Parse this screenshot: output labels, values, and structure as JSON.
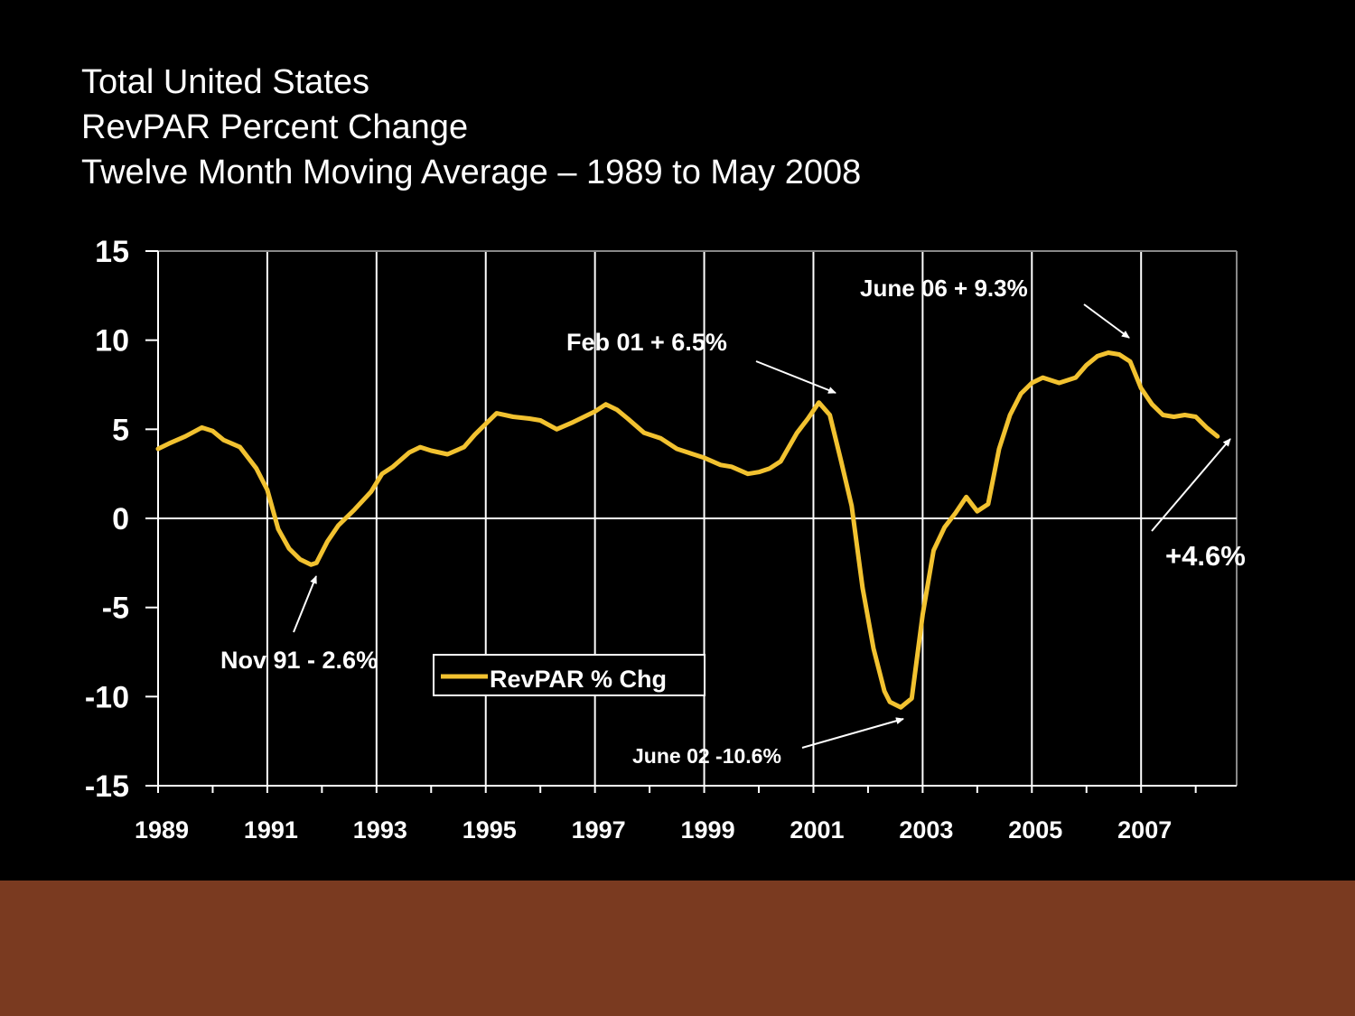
{
  "slide": {
    "title_lines": [
      "Total United States",
      "RevPAR Percent Change",
      "Twelve Month Moving Average – 1989 to May 2008"
    ],
    "footer_color": "#7a3a20",
    "background_color": "#000000"
  },
  "chart_data": {
    "type": "line",
    "title": "",
    "xlabel": "",
    "ylabel": "",
    "xlim": [
      1989,
      2008.75
    ],
    "ylim": [
      -15,
      15
    ],
    "y_ticks": [
      15,
      10,
      5,
      0,
      -5,
      -10,
      -15
    ],
    "y_tick_labels": [
      "15",
      "10",
      "5",
      "0",
      "-5",
      "-10",
      "-15"
    ],
    "x_ticks": [
      1989,
      1991,
      1993,
      1995,
      1997,
      1999,
      2001,
      2003,
      2005,
      2007
    ],
    "x_tick_labels": [
      "1989",
      "1991",
      "1993",
      "1995",
      "1997",
      "1999",
      "2001",
      "2003",
      "2005",
      "2007"
    ],
    "grid": {
      "vertical": true,
      "horizontal": false,
      "zero_line": true
    },
    "legend": {
      "position": "lower-center",
      "label": "RevPAR % Chg"
    },
    "colors": {
      "series": "#f2c230",
      "grid": "#ffffff",
      "axis": "#ffffff"
    },
    "series": [
      {
        "name": "RevPAR % Chg",
        "x": [
          1989.0,
          1989.2,
          1989.5,
          1989.8,
          1990.0,
          1990.2,
          1990.5,
          1990.8,
          1991.0,
          1991.2,
          1991.4,
          1991.6,
          1991.8,
          1991.9,
          1992.1,
          1992.3,
          1992.6,
          1992.9,
          1993.1,
          1993.3,
          1993.6,
          1993.8,
          1994.0,
          1994.3,
          1994.6,
          1994.8,
          1995.0,
          1995.2,
          1995.5,
          1995.8,
          1996.0,
          1996.3,
          1996.6,
          1996.8,
          1997.0,
          1997.2,
          1997.4,
          1997.6,
          1997.9,
          1998.2,
          1998.5,
          1998.8,
          1999.0,
          1999.3,
          1999.5,
          1999.8,
          2000.0,
          2000.2,
          2000.4,
          2000.7,
          2000.9,
          2001.1,
          2001.3,
          2001.5,
          2001.7,
          2001.9,
          2002.1,
          2002.3,
          2002.4,
          2002.6,
          2002.8,
          2003.0,
          2003.2,
          2003.4,
          2003.6,
          2003.8,
          2004.0,
          2004.2,
          2004.4,
          2004.6,
          2004.8,
          2005.0,
          2005.2,
          2005.5,
          2005.8,
          2006.0,
          2006.2,
          2006.4,
          2006.6,
          2006.8,
          2007.0,
          2007.2,
          2007.4,
          2007.6,
          2007.8,
          2008.0,
          2008.2,
          2008.4
        ],
        "values": [
          3.9,
          4.2,
          4.6,
          5.1,
          4.9,
          4.4,
          4.0,
          2.8,
          1.6,
          -0.6,
          -1.7,
          -2.3,
          -2.6,
          -2.5,
          -1.3,
          -0.4,
          0.5,
          1.5,
          2.5,
          2.9,
          3.7,
          4.0,
          3.8,
          3.6,
          4.0,
          4.7,
          5.3,
          5.9,
          5.7,
          5.6,
          5.5,
          5.0,
          5.4,
          5.7,
          6.0,
          6.4,
          6.1,
          5.6,
          4.8,
          4.5,
          3.9,
          3.6,
          3.4,
          3.0,
          2.9,
          2.5,
          2.6,
          2.8,
          3.2,
          4.8,
          5.6,
          6.5,
          5.8,
          3.3,
          0.7,
          -3.9,
          -7.3,
          -9.7,
          -10.3,
          -10.6,
          -10.1,
          -5.4,
          -1.8,
          -0.5,
          0.3,
          1.2,
          0.4,
          0.8,
          3.9,
          5.8,
          7.0,
          7.6,
          7.9,
          7.6,
          7.9,
          8.6,
          9.1,
          9.3,
          9.2,
          8.8,
          7.3,
          6.4,
          5.8,
          5.7,
          5.8,
          5.7,
          5.1,
          4.6
        ]
      }
    ],
    "annotations": [
      {
        "text": "Nov 91 - 2.6%",
        "x": 1991.83,
        "y": -2.6
      },
      {
        "text": "Feb 01 + 6.5%",
        "x": 2001.1,
        "y": 6.5
      },
      {
        "text": "June 02 -10.6%",
        "x": 2002.4,
        "y": -10.6
      },
      {
        "text": "June 06 + 9.3%",
        "x": 2006.4,
        "y": 9.3
      },
      {
        "text": "+4.6%",
        "x": 2008.4,
        "y": 4.6
      }
    ]
  }
}
